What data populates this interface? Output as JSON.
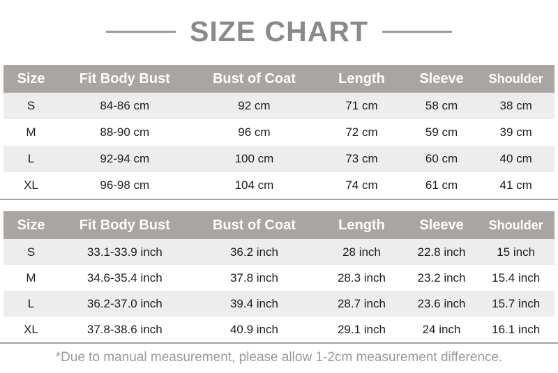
{
  "title": "SIZE CHART",
  "columns": [
    "Size",
    "Fit Body Bust",
    "Bust of Coat",
    "Length",
    "Sleeve",
    "Shoulder"
  ],
  "column_widths_percent": [
    10,
    24,
    23,
    16,
    13,
    14
  ],
  "tables": [
    {
      "unit": "cm",
      "rows": [
        [
          "S",
          "84-86 cm",
          "92 cm",
          "71 cm",
          "58 cm",
          "38 cm"
        ],
        [
          "M",
          "88-90 cm",
          "96 cm",
          "72 cm",
          "59 cm",
          "39 cm"
        ],
        [
          "L",
          "92-94 cm",
          "100 cm",
          "73 cm",
          "60 cm",
          "40 cm"
        ],
        [
          "XL",
          "96-98 cm",
          "104 cm",
          "74 cm",
          "61 cm",
          "41 cm"
        ]
      ]
    },
    {
      "unit": "inch",
      "rows": [
        [
          "S",
          "33.1-33.9 inch",
          "36.2 inch",
          "28 inch",
          "22.8 inch",
          "15 inch"
        ],
        [
          "M",
          "34.6-35.4 inch",
          "37.8 inch",
          "28.3 inch",
          "23.2 inch",
          "15.4 inch"
        ],
        [
          "L",
          "36.2-37.0 inch",
          "39.4 inch",
          "28.7 inch",
          "23.6 inch",
          "15.7 inch"
        ],
        [
          "XL",
          "37.8-38.6 inch",
          "40.9 inch",
          "29.1 inch",
          "24 inch",
          "16.1 inch"
        ]
      ]
    }
  ],
  "footnote": "*Due to manual measurement, please allow 1-2cm measurement difference.",
  "colors": {
    "title_text": "#8a8a8a",
    "title_line": "#999999",
    "header_bg": "#a9a5a3",
    "header_text": "#ffffff",
    "row_stripe": "#ededed",
    "row_plain": "#ffffff",
    "body_text": "#1c1c1c",
    "divider_line": "#a3a3a3",
    "footnote_text": "#9a9a9a"
  }
}
